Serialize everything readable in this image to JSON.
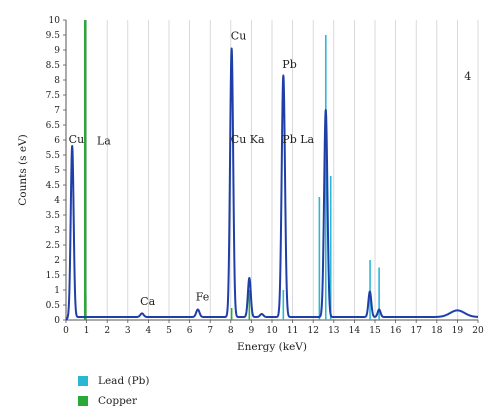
{
  "chart_data": {
    "type": "line",
    "xlabel": "Energy (keV)",
    "ylabel": "Counts (s eV)",
    "xlim": [
      0,
      20
    ],
    "ylim": [
      0,
      10
    ],
    "x_ticks": [
      0,
      1,
      2,
      3,
      4,
      5,
      6,
      7,
      8,
      9,
      10,
      11,
      12,
      13,
      14,
      15,
      16,
      17,
      18,
      19,
      20
    ],
    "y_ticks": [
      "0",
      "0.5",
      "1",
      "1.5",
      "2",
      "2.5",
      "3",
      "3.5",
      "4",
      "4.5",
      "5",
      "5.5",
      "6",
      "6.5",
      "7",
      "7.5",
      "8",
      "8.5",
      "9",
      "9.5",
      "10"
    ],
    "grid": "vertical",
    "panel_label": "4",
    "spectrum": {
      "color": "#1f3fa8",
      "baseline": 0.1,
      "peaks": [
        {
          "x": 0.3,
          "height": 5.7,
          "width": 0.07
        },
        {
          "x": 3.69,
          "height": 0.12,
          "width": 0.08
        },
        {
          "x": 6.4,
          "height": 0.25,
          "width": 0.08
        },
        {
          "x": 8.04,
          "height": 8.95,
          "width": 0.075
        },
        {
          "x": 8.9,
          "height": 1.3,
          "width": 0.07
        },
        {
          "x": 9.5,
          "height": 0.1,
          "width": 0.08
        },
        {
          "x": 10.55,
          "height": 8.05,
          "width": 0.08
        },
        {
          "x": 12.61,
          "height": 6.9,
          "width": 0.08
        },
        {
          "x": 14.75,
          "height": 0.85,
          "width": 0.07
        },
        {
          "x": 15.2,
          "height": 0.25,
          "width": 0.07
        },
        {
          "x": 19.0,
          "height": 0.22,
          "width": 0.35
        }
      ]
    },
    "reference_lines": [
      {
        "series": "Lead (Pb)",
        "color": "#2bb7d3",
        "lines": [
          {
            "x": 10.55,
            "y": 1.0
          },
          {
            "x": 12.3,
            "y": 4.1
          },
          {
            "x": 12.61,
            "y": 9.5
          },
          {
            "x": 12.85,
            "y": 4.8
          },
          {
            "x": 14.76,
            "y": 2.0
          },
          {
            "x": 15.2,
            "y": 1.75
          }
        ]
      },
      {
        "series": "Copper",
        "color": "#2aa838",
        "lines": [
          {
            "x": 0.93,
            "y": 10.0
          },
          {
            "x": 0.95,
            "y": 0.85
          },
          {
            "x": 8.04,
            "y": 0.4
          },
          {
            "x": 8.9,
            "y": 1.0
          }
        ]
      }
    ],
    "annotations": [
      {
        "text": "Cu",
        "x": 0.13,
        "y": 5.9
      },
      {
        "text": "La",
        "x": 1.5,
        "y": 5.85
      },
      {
        "text": "Ca",
        "x": 3.6,
        "y": 0.5
      },
      {
        "text": "Fe",
        "x": 6.3,
        "y": 0.65
      },
      {
        "text": "Cu",
        "x": 8.0,
        "y": 9.35
      },
      {
        "text": "Cu Ka",
        "x": 8.0,
        "y": 5.9
      },
      {
        "text": "Pb",
        "x": 10.5,
        "y": 8.4
      },
      {
        "text": "Pb La",
        "x": 10.5,
        "y": 5.9
      }
    ],
    "legend": [
      {
        "label": "Lead (Pb)",
        "color": "#2bb7d3"
      },
      {
        "label": "Copper",
        "color": "#2aa838"
      }
    ]
  }
}
